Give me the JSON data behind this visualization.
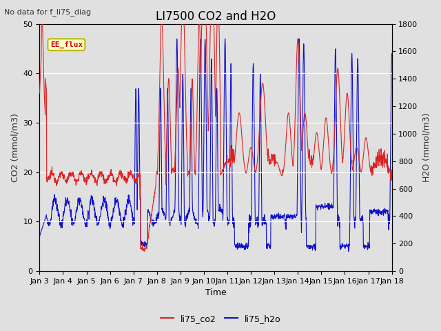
{
  "title": "LI7500 CO2 and H2O",
  "subtitle": "No data for f_li75_diag",
  "xlabel": "Time",
  "ylabel_left": "CO2 (mmol/m3)",
  "ylabel_right": "H2O (mmol/m3)",
  "ylim_left": [
    0,
    50
  ],
  "ylim_right": [
    0,
    1800
  ],
  "xtick_labels": [
    "Jan 3",
    "Jan 4",
    "Jan 5",
    "Jan 6",
    "Jan 7",
    "Jan 8",
    "Jan 9",
    "Jan 10",
    "Jan 11",
    "Jan 12",
    "Jan 13",
    "Jan 14",
    "Jan 15",
    "Jan 16",
    "Jan 17",
    "Jan 18"
  ],
  "co2_color": "#dd2222",
  "h2o_color": "#1111cc",
  "background_color": "#e0e0e0",
  "plot_bg_color": "#ebebeb",
  "legend_box_color": "#ffffcc",
  "legend_box_edge": "#bbbb00",
  "legend_box_text": "EE_flux",
  "legend_box_text_color": "#cc0000",
  "grid_color": "#ffffff",
  "title_fontsize": 12,
  "label_fontsize": 9,
  "tick_fontsize": 8
}
